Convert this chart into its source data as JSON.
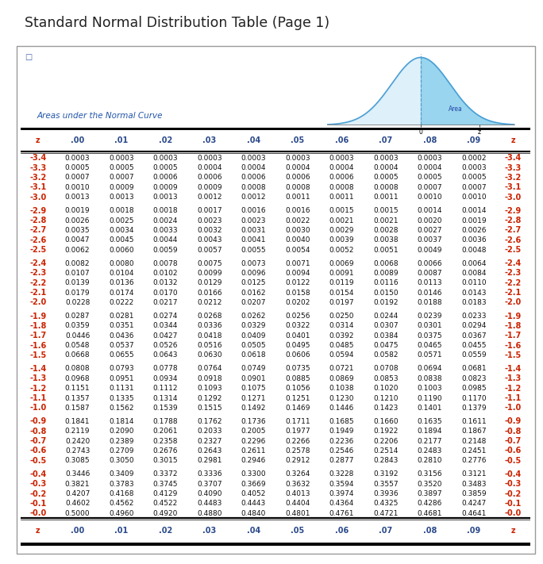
{
  "title": "Standard Normal Distribution Table (Page 1)",
  "subtitle": "Areas under the Normal Curve",
  "col_headers": [
    "z",
    ".00",
    ".01",
    ".02",
    ".03",
    ".04",
    ".05",
    ".06",
    ".07",
    ".08",
    ".09",
    "z"
  ],
  "rows": [
    [
      "-3.4",
      "0.0003",
      "0.0003",
      "0.0003",
      "0.0003",
      "0.0003",
      "0.0003",
      "0.0003",
      "0.0003",
      "0.0003",
      "0.0002",
      "-3.4"
    ],
    [
      "-3.3",
      "0.0005",
      "0.0005",
      "0.0005",
      "0.0004",
      "0.0004",
      "0.0004",
      "0.0004",
      "0.0004",
      "0.0004",
      "0.0003",
      "-3.3"
    ],
    [
      "-3.2",
      "0.0007",
      "0.0007",
      "0.0006",
      "0.0006",
      "0.0006",
      "0.0006",
      "0.0006",
      "0.0005",
      "0.0005",
      "0.0005",
      "-3.2"
    ],
    [
      "-3.1",
      "0.0010",
      "0.0009",
      "0.0009",
      "0.0009",
      "0.0008",
      "0.0008",
      "0.0008",
      "0.0008",
      "0.0007",
      "0.0007",
      "-3.1"
    ],
    [
      "-3.0",
      "0.0013",
      "0.0013",
      "0.0013",
      "0.0012",
      "0.0012",
      "0.0011",
      "0.0011",
      "0.0011",
      "0.0010",
      "0.0010",
      "-3.0"
    ],
    [
      "",
      "",
      "",
      "",
      "",
      "",
      "",
      "",
      "",
      "",
      "",
      ""
    ],
    [
      "-2.9",
      "0.0019",
      "0.0018",
      "0.0018",
      "0.0017",
      "0.0016",
      "0.0016",
      "0.0015",
      "0.0015",
      "0.0014",
      "0.0014",
      "-2.9"
    ],
    [
      "-2.8",
      "0.0026",
      "0.0025",
      "0.0024",
      "0.0023",
      "0.0023",
      "0.0022",
      "0.0021",
      "0.0021",
      "0.0020",
      "0.0019",
      "-2.8"
    ],
    [
      "-2.7",
      "0.0035",
      "0.0034",
      "0.0033",
      "0.0032",
      "0.0031",
      "0.0030",
      "0.0029",
      "0.0028",
      "0.0027",
      "0.0026",
      "-2.7"
    ],
    [
      "-2.6",
      "0.0047",
      "0.0045",
      "0.0044",
      "0.0043",
      "0.0041",
      "0.0040",
      "0.0039",
      "0.0038",
      "0.0037",
      "0.0036",
      "-2.6"
    ],
    [
      "-2.5",
      "0.0062",
      "0.0060",
      "0.0059",
      "0.0057",
      "0.0055",
      "0.0054",
      "0.0052",
      "0.0051",
      "0.0049",
      "0.0048",
      "-2.5"
    ],
    [
      "",
      "",
      "",
      "",
      "",
      "",
      "",
      "",
      "",
      "",
      "",
      ""
    ],
    [
      "-2.4",
      "0.0082",
      "0.0080",
      "0.0078",
      "0.0075",
      "0.0073",
      "0.0071",
      "0.0069",
      "0.0068",
      "0.0066",
      "0.0064",
      "-2.4"
    ],
    [
      "-2.3",
      "0.0107",
      "0.0104",
      "0.0102",
      "0.0099",
      "0.0096",
      "0.0094",
      "0.0091",
      "0.0089",
      "0.0087",
      "0.0084",
      "-2.3"
    ],
    [
      "-2.2",
      "0.0139",
      "0.0136",
      "0.0132",
      "0.0129",
      "0.0125",
      "0.0122",
      "0.0119",
      "0.0116",
      "0.0113",
      "0.0110",
      "-2.2"
    ],
    [
      "-2.1",
      "0.0179",
      "0.0174",
      "0.0170",
      "0.0166",
      "0.0162",
      "0.0158",
      "0.0154",
      "0.0150",
      "0.0146",
      "0.0143",
      "-2.1"
    ],
    [
      "-2.0",
      "0.0228",
      "0.0222",
      "0.0217",
      "0.0212",
      "0.0207",
      "0.0202",
      "0.0197",
      "0.0192",
      "0.0188",
      "0.0183",
      "-2.0"
    ],
    [
      "",
      "",
      "",
      "",
      "",
      "",
      "",
      "",
      "",
      "",
      "",
      ""
    ],
    [
      "-1.9",
      "0.0287",
      "0.0281",
      "0.0274",
      "0.0268",
      "0.0262",
      "0.0256",
      "0.0250",
      "0.0244",
      "0.0239",
      "0.0233",
      "-1.9"
    ],
    [
      "-1.8",
      "0.0359",
      "0.0351",
      "0.0344",
      "0.0336",
      "0.0329",
      "0.0322",
      "0.0314",
      "0.0307",
      "0.0301",
      "0.0294",
      "-1.8"
    ],
    [
      "-1.7",
      "0.0446",
      "0.0436",
      "0.0427",
      "0.0418",
      "0.0409",
      "0.0401",
      "0.0392",
      "0.0384",
      "0.0375",
      "0.0367",
      "-1.7"
    ],
    [
      "-1.6",
      "0.0548",
      "0.0537",
      "0.0526",
      "0.0516",
      "0.0505",
      "0.0495",
      "0.0485",
      "0.0475",
      "0.0465",
      "0.0455",
      "-1.6"
    ],
    [
      "-1.5",
      "0.0668",
      "0.0655",
      "0.0643",
      "0.0630",
      "0.0618",
      "0.0606",
      "0.0594",
      "0.0582",
      "0.0571",
      "0.0559",
      "-1.5"
    ],
    [
      "",
      "",
      "",
      "",
      "",
      "",
      "",
      "",
      "",
      "",
      "",
      ""
    ],
    [
      "-1.4",
      "0.0808",
      "0.0793",
      "0.0778",
      "0.0764",
      "0.0749",
      "0.0735",
      "0.0721",
      "0.0708",
      "0.0694",
      "0.0681",
      "-1.4"
    ],
    [
      "-1.3",
      "0.0968",
      "0.0951",
      "0.0934",
      "0.0918",
      "0.0901",
      "0.0885",
      "0.0869",
      "0.0853",
      "0.0838",
      "0.0823",
      "-1.3"
    ],
    [
      "-1.2",
      "0.1151",
      "0.1131",
      "0.1112",
      "0.1093",
      "0.1075",
      "0.1056",
      "0.1038",
      "0.1020",
      "0.1003",
      "0.0985",
      "-1.2"
    ],
    [
      "-1.1",
      "0.1357",
      "0.1335",
      "0.1314",
      "0.1292",
      "0.1271",
      "0.1251",
      "0.1230",
      "0.1210",
      "0.1190",
      "0.1170",
      "-1.1"
    ],
    [
      "-1.0",
      "0.1587",
      "0.1562",
      "0.1539",
      "0.1515",
      "0.1492",
      "0.1469",
      "0.1446",
      "0.1423",
      "0.1401",
      "0.1379",
      "-1.0"
    ],
    [
      "",
      "",
      "",
      "",
      "",
      "",
      "",
      "",
      "",
      "",
      "",
      ""
    ],
    [
      "-0.9",
      "0.1841",
      "0.1814",
      "0.1788",
      "0.1762",
      "0.1736",
      "0.1711",
      "0.1685",
      "0.1660",
      "0.1635",
      "0.1611",
      "-0.9"
    ],
    [
      "-0.8",
      "0.2119",
      "0.2090",
      "0.2061",
      "0.2033",
      "0.2005",
      "0.1977",
      "0.1949",
      "0.1922",
      "0.1894",
      "0.1867",
      "-0.8"
    ],
    [
      "-0.7",
      "0.2420",
      "0.2389",
      "0.2358",
      "0.2327",
      "0.2296",
      "0.2266",
      "0.2236",
      "0.2206",
      "0.2177",
      "0.2148",
      "-0.7"
    ],
    [
      "-0.6",
      "0.2743",
      "0.2709",
      "0.2676",
      "0.2643",
      "0.2611",
      "0.2578",
      "0.2546",
      "0.2514",
      "0.2483",
      "0.2451",
      "-0.6"
    ],
    [
      "-0.5",
      "0.3085",
      "0.3050",
      "0.3015",
      "0.2981",
      "0.2946",
      "0.2912",
      "0.2877",
      "0.2843",
      "0.2810",
      "0.2776",
      "-0.5"
    ],
    [
      "",
      "",
      "",
      "",
      "",
      "",
      "",
      "",
      "",
      "",
      "",
      ""
    ],
    [
      "-0.4",
      "0.3446",
      "0.3409",
      "0.3372",
      "0.3336",
      "0.3300",
      "0.3264",
      "0.3228",
      "0.3192",
      "0.3156",
      "0.3121",
      "-0.4"
    ],
    [
      "-0.3",
      "0.3821",
      "0.3783",
      "0.3745",
      "0.3707",
      "0.3669",
      "0.3632",
      "0.3594",
      "0.3557",
      "0.3520",
      "0.3483",
      "-0.3"
    ],
    [
      "-0.2",
      "0.4207",
      "0.4168",
      "0.4129",
      "0.4090",
      "0.4052",
      "0.4013",
      "0.3974",
      "0.3936",
      "0.3897",
      "0.3859",
      "-0.2"
    ],
    [
      "-0.1",
      "0.4602",
      "0.4562",
      "0.4522",
      "0.4483",
      "0.4443",
      "0.4404",
      "0.4364",
      "0.4325",
      "0.4286",
      "0.4247",
      "-0.1"
    ],
    [
      "-0.0",
      "0.5000",
      "0.4960",
      "0.4920",
      "0.4880",
      "0.4840",
      "0.4801",
      "0.4761",
      "0.4721",
      "0.4681",
      "0.4641",
      "-0.0"
    ]
  ],
  "title_color": "#222222",
  "header_color": "#2b4a8b",
  "data_color": "#111111",
  "z_color": "#cc2200",
  "subtitle_color": "#2255aa",
  "bg_color": "#ffffff",
  "border_color": "#999999",
  "curve_fill_right": "#87ceeb",
  "curve_fill_left": "#c8e6f5",
  "curve_line": "#4a9fd5",
  "curve_dashed": "#5599cc"
}
